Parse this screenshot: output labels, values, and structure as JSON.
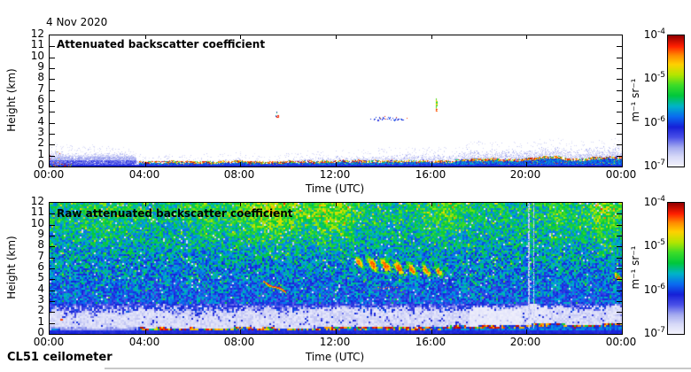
{
  "page": {
    "date_label": "4 Nov 2020",
    "instrument_label": "CL51 ceilometer"
  },
  "colors": {
    "background": "#ffffff",
    "axis": "#000000",
    "surface_layer_blue": "#1c26da"
  },
  "colormap_stops": [
    [
      0.0,
      "#f2f2fc"
    ],
    [
      0.07,
      "#d8daf8"
    ],
    [
      0.14,
      "#a8aef0"
    ],
    [
      0.22,
      "#4a50e8"
    ],
    [
      0.3,
      "#1620d8"
    ],
    [
      0.38,
      "#0a6cf0"
    ],
    [
      0.46,
      "#00b4c8"
    ],
    [
      0.54,
      "#00c83c"
    ],
    [
      0.62,
      "#3cdc28"
    ],
    [
      0.7,
      "#b4e600"
    ],
    [
      0.78,
      "#ffd200"
    ],
    [
      0.85,
      "#ff8c00"
    ],
    [
      0.92,
      "#ff1e00"
    ],
    [
      1.0,
      "#960000"
    ]
  ],
  "chart_data": [
    {
      "type": "heatmap",
      "title": "Attenuated backscatter coefficient",
      "xlabel": "Time (UTC)",
      "ylabel": "Height (km)",
      "x_ticks": [
        "00:00",
        "04:00",
        "08:00",
        "12:00",
        "16:00",
        "20:00",
        "00:00"
      ],
      "y_ticks": [
        "0",
        "1",
        "2",
        "3",
        "4",
        "5",
        "6",
        "7",
        "8",
        "9",
        "10",
        "11",
        "12"
      ],
      "xlim_hours": [
        0,
        24
      ],
      "ylim_km": [
        0,
        12
      ],
      "colorbar": {
        "unit": "m⁻¹ sr⁻¹",
        "scale": "log",
        "range": [
          "1e-7",
          "1e-4"
        ],
        "ticks": [
          {
            "base": "10",
            "exp": "-4"
          },
          {
            "base": "10",
            "exp": "-5"
          },
          {
            "base": "10",
            "exp": "-6"
          },
          {
            "base": "10",
            "exp": "-7"
          }
        ]
      },
      "layers": {
        "aerosol_top_km": [
          [
            0,
            1.45
          ],
          [
            1,
            1.35
          ],
          [
            2,
            1.3
          ],
          [
            3,
            1.25
          ],
          [
            3.4,
            1.2
          ],
          [
            3.7,
            0.55
          ],
          [
            5,
            0.5
          ],
          [
            7,
            0.55
          ],
          [
            8,
            0.6
          ],
          [
            9,
            0.55
          ],
          [
            10,
            0.6
          ],
          [
            11,
            0.9
          ],
          [
            12,
            1.0
          ],
          [
            13,
            0.9
          ],
          [
            14,
            1.2
          ],
          [
            15,
            1.1
          ],
          [
            16,
            1.25
          ],
          [
            17,
            1.2
          ],
          [
            17.6,
            1.7
          ],
          [
            18.4,
            1.6
          ],
          [
            19.3,
            1.8
          ],
          [
            20,
            1.6
          ],
          [
            20.6,
            1.9
          ],
          [
            21.5,
            2.0
          ],
          [
            22,
            1.7
          ],
          [
            22.6,
            1.9
          ],
          [
            23.3,
            1.8
          ],
          [
            24,
            2.1
          ]
        ],
        "surface_line_km": [
          [
            0,
            0.13
          ],
          [
            0.9,
            0.13
          ],
          [
            0.95,
            -1
          ],
          [
            3.65,
            -1
          ],
          [
            3.75,
            0.38
          ],
          [
            5,
            0.33
          ],
          [
            6,
            0.36
          ],
          [
            7,
            0.33
          ],
          [
            8,
            0.38
          ],
          [
            9,
            0.34
          ],
          [
            10,
            0.33
          ],
          [
            11,
            0.38
          ],
          [
            12,
            0.42
          ],
          [
            13,
            0.4
          ],
          [
            14,
            0.45
          ],
          [
            15,
            0.42
          ],
          [
            16,
            0.4
          ],
          [
            16.8,
            0.45
          ],
          [
            17.4,
            0.55
          ],
          [
            18,
            0.52
          ],
          [
            18.6,
            0.62
          ],
          [
            19.2,
            0.55
          ],
          [
            20,
            0.6
          ],
          [
            20.6,
            0.72
          ],
          [
            21.2,
            0.82
          ],
          [
            21.7,
            0.62
          ],
          [
            22.2,
            0.58
          ],
          [
            22.8,
            0.68
          ],
          [
            23.4,
            0.72
          ],
          [
            24,
            0.78
          ]
        ]
      },
      "features": [
        {
          "name": "cloud-speck",
          "t": 9.55,
          "h": 4.55
        },
        {
          "name": "cloud-streak",
          "t0": 13.6,
          "t1": 14.85,
          "h": 4.35
        },
        {
          "name": "fall-streak-column",
          "t": 16.2,
          "h0": 5.0,
          "h1": 6.15
        }
      ]
    },
    {
      "type": "heatmap",
      "title": "Raw attenuated backscatter coefficient",
      "xlabel": "Time (UTC)",
      "ylabel": "Height (km)",
      "x_ticks": [
        "00:00",
        "04:00",
        "08:00",
        "12:00",
        "16:00",
        "20:00",
        "00:00"
      ],
      "y_ticks": [
        "0",
        "1",
        "2",
        "3",
        "4",
        "5",
        "6",
        "7",
        "8",
        "9",
        "10",
        "11",
        "12"
      ],
      "xlim_hours": [
        0,
        24
      ],
      "ylim_km": [
        0,
        12
      ],
      "colorbar": {
        "unit": "m⁻¹ sr⁻¹",
        "scale": "log",
        "range": [
          "1e-7",
          "1e-4"
        ],
        "ticks": [
          {
            "base": "10",
            "exp": "-4"
          },
          {
            "base": "10",
            "exp": "-5"
          },
          {
            "base": "10",
            "exp": "-6"
          },
          {
            "base": "10",
            "exp": "-7"
          }
        ]
      },
      "surface_colored_from": 3.7,
      "layers": {
        "white_band_top_km": [
          [
            0,
            1.9
          ],
          [
            1,
            1.7
          ],
          [
            2,
            1.85
          ],
          [
            3,
            1.95
          ],
          [
            4,
            2.0
          ],
          [
            5,
            1.85
          ],
          [
            6,
            1.75
          ],
          [
            7,
            1.9
          ],
          [
            8,
            2.0
          ],
          [
            9,
            1.9
          ],
          [
            10,
            2.05
          ],
          [
            11,
            2.2
          ],
          [
            12,
            2.3
          ],
          [
            13,
            2.0
          ],
          [
            14,
            2.15
          ],
          [
            15,
            2.05
          ],
          [
            16,
            2.0
          ],
          [
            17,
            1.8
          ],
          [
            17.8,
            2.3
          ],
          [
            18.5,
            2.4
          ],
          [
            19.3,
            2.2
          ],
          [
            20,
            2.5
          ],
          [
            21,
            2.3
          ],
          [
            22,
            2.1
          ],
          [
            23,
            2.3
          ],
          [
            24,
            2.5
          ]
        ],
        "surface_line_km": [
          [
            0,
            0.38
          ],
          [
            1,
            0.36
          ],
          [
            2,
            0.37
          ],
          [
            3,
            0.37
          ],
          [
            3.75,
            0.38
          ],
          [
            5,
            0.33
          ],
          [
            6,
            0.36
          ],
          [
            7,
            0.33
          ],
          [
            8,
            0.38
          ],
          [
            9,
            0.34
          ],
          [
            10,
            0.33
          ],
          [
            11,
            0.38
          ],
          [
            12,
            0.42
          ],
          [
            13,
            0.4
          ],
          [
            14,
            0.45
          ],
          [
            15,
            0.42
          ],
          [
            16,
            0.4
          ],
          [
            16.8,
            0.45
          ],
          [
            17.4,
            0.55
          ],
          [
            18,
            0.52
          ],
          [
            18.6,
            0.62
          ],
          [
            19.2,
            0.55
          ],
          [
            20,
            0.6
          ],
          [
            20.6,
            0.72
          ],
          [
            21.2,
            0.82
          ],
          [
            21.7,
            0.62
          ],
          [
            22.2,
            0.58
          ],
          [
            22.8,
            0.68
          ],
          [
            23.4,
            0.72
          ],
          [
            24,
            0.78
          ]
        ]
      },
      "noise_hotspots": [
        {
          "t": 9.3,
          "amp": 0.17,
          "sigma": 1.4
        },
        {
          "t": 11.9,
          "amp": 0.15,
          "sigma": 0.9
        },
        {
          "t": 16.6,
          "amp": 0.08,
          "sigma": 0.9
        },
        {
          "t": 21.4,
          "amp": 0.07,
          "sigma": 0.5
        },
        {
          "t": 23.3,
          "amp": 0.13,
          "sigma": 0.8
        },
        {
          "t": 2.3,
          "amp": 0.05,
          "sigma": 1.2
        },
        {
          "t": 6.5,
          "amp": 0.05,
          "sigma": 1.0
        }
      ],
      "features": [
        {
          "name": "cloud-arc",
          "t0": 8.95,
          "h0": 4.85,
          "t1": 9.9,
          "h1": 3.75
        },
        {
          "name": "cloud-blob",
          "t": 12.95,
          "h": 6.55,
          "s": 0.7
        },
        {
          "name": "cloud-blob",
          "t": 13.5,
          "h": 6.35,
          "s": 1.0
        },
        {
          "name": "cloud-blob",
          "t": 14.05,
          "h": 6.25,
          "s": 1.1
        },
        {
          "name": "cloud-blob",
          "t": 14.6,
          "h": 6.05,
          "s": 1.0
        },
        {
          "name": "cloud-blob",
          "t": 15.15,
          "h": 5.95,
          "s": 0.9
        },
        {
          "name": "cloud-blob",
          "t": 15.75,
          "h": 5.8,
          "s": 0.8
        },
        {
          "name": "cloud-blob",
          "t": 16.3,
          "h": 5.65,
          "s": 0.6
        },
        {
          "name": "cloud-blob",
          "t": 23.8,
          "h": 5.2,
          "s": 0.6
        },
        {
          "name": "drizzle-line",
          "t0": 13.65,
          "t1": 14.65,
          "h": 4.2
        },
        {
          "name": "data-gap-streak",
          "t": 20.07,
          "w": 2
        },
        {
          "name": "data-gap-streak",
          "t": 20.3,
          "w": 1
        },
        {
          "name": "surface-speck-dot",
          "t": 0.45,
          "h": 1.3
        }
      ]
    }
  ]
}
